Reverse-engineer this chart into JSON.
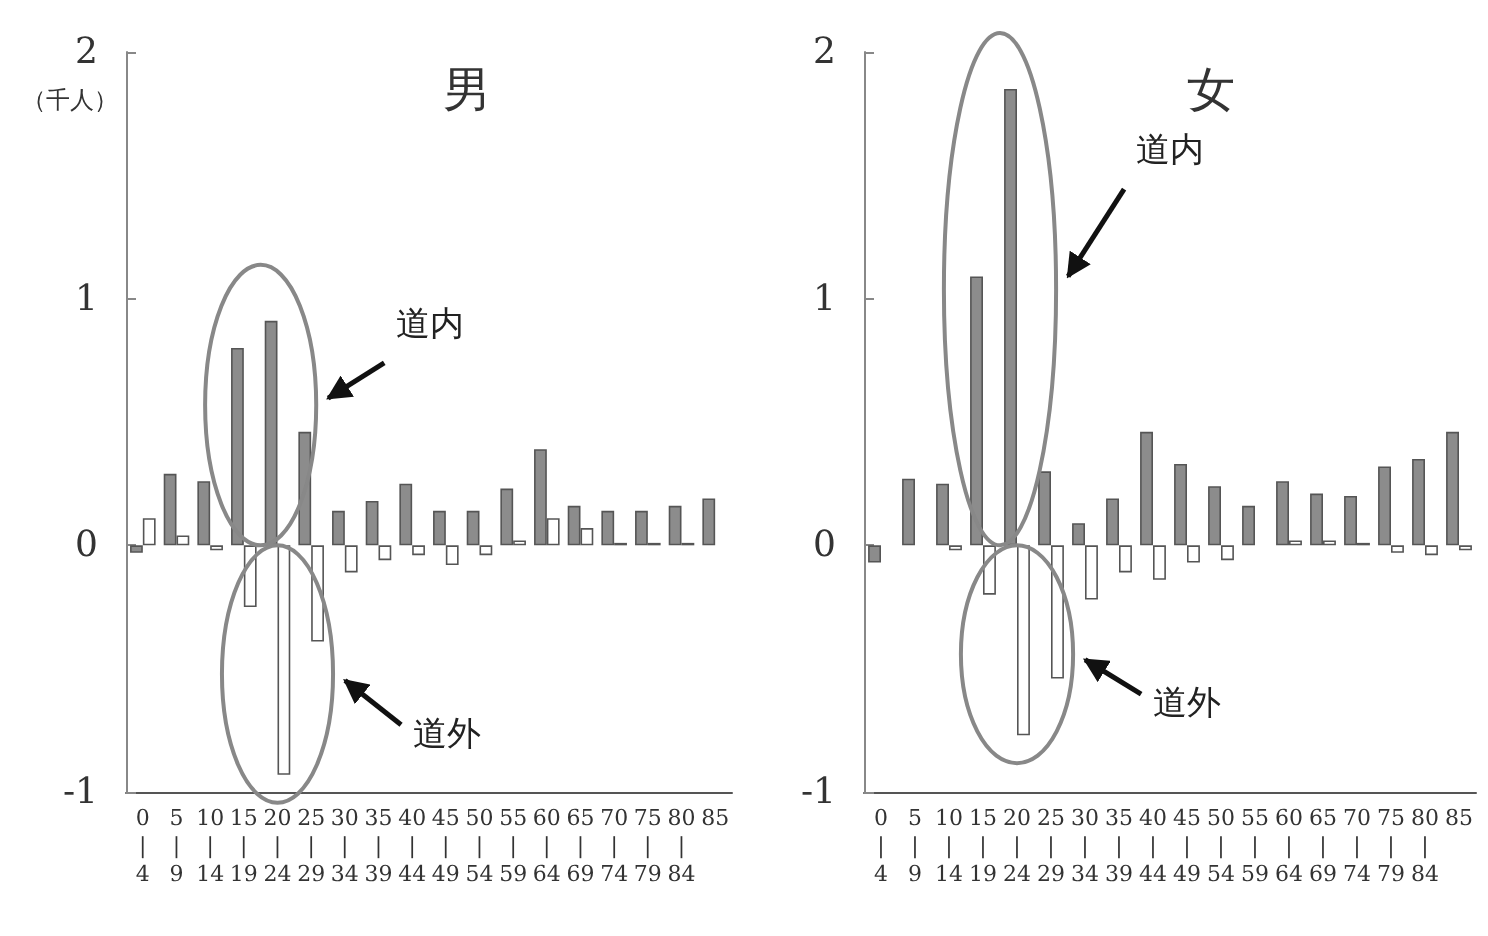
{
  "chart_data": [
    {
      "type": "bar",
      "title": "男",
      "ylabel": "（千人）",
      "annotations": [
        "道内",
        "道外"
      ],
      "categories": [
        "0\n|\n4",
        "5\n|\n9",
        "10\n|\n14",
        "15\n|\n19",
        "20\n|\n24",
        "25\n|\n29",
        "30\n|\n34",
        "35\n|\n39",
        "40\n|\n44",
        "45\n|\n49",
        "50\n|\n54",
        "55\n|\n59",
        "60\n|\n64",
        "65\n|\n69",
        "70\n|\n74",
        "75\n|\n79",
        "80\n|\n84",
        "85"
      ],
      "ylim": [
        -1,
        2
      ],
      "yticks": [
        -1,
        0,
        1,
        2
      ],
      "grid": false,
      "series": [
        {
          "color": "#8c8c8c",
          "values": [
            -0.03,
            0.29,
            0.26,
            0.8,
            0.91,
            0.46,
            0.14,
            0.18,
            0.25,
            0.14,
            0.14,
            0.23,
            0.39,
            0.16,
            0.14,
            0.14,
            0.16,
            0.19
          ]
        },
        {
          "color": "#ffffff",
          "values": [
            0.11,
            0.04,
            -0.02,
            -0.25,
            -0.93,
            -0.39,
            -0.11,
            -0.06,
            -0.04,
            -0.08,
            -0.04,
            0.02,
            0.11,
            0.07,
            0.01,
            0.01,
            0.01,
            null
          ]
        }
      ]
    },
    {
      "type": "bar",
      "title": "女",
      "annotations": [
        "道内",
        "道外"
      ],
      "categories": [
        "0\n|\n4",
        "5\n|\n9",
        "10\n|\n14",
        "15\n|\n19",
        "20\n|\n24",
        "25\n|\n29",
        "30\n|\n34",
        "35\n|\n39",
        "40\n|\n44",
        "45\n|\n49",
        "50\n|\n54",
        "55\n|\n59",
        "60\n|\n64",
        "65\n|\n69",
        "70\n|\n74",
        "75\n|\n79",
        "80\n|\n84",
        "85"
      ],
      "ylim": [
        -1,
        2
      ],
      "yticks": [
        -1,
        0,
        1,
        2
      ],
      "grid": false,
      "series": [
        {
          "color": "#8c8c8c",
          "values": [
            -0.07,
            0.27,
            0.25,
            1.09,
            1.85,
            0.3,
            0.09,
            0.19,
            0.46,
            0.33,
            0.24,
            0.16,
            0.26,
            0.21,
            0.2,
            0.32,
            0.35,
            0.46
          ]
        },
        {
          "color": "#ffffff",
          "values": [
            null,
            0,
            -0.02,
            -0.2,
            -0.77,
            -0.54,
            -0.22,
            -0.11,
            -0.14,
            -0.07,
            -0.06,
            null,
            0.02,
            0.02,
            0.01,
            -0.03,
            -0.04,
            -0.02
          ]
        }
      ]
    }
  ]
}
